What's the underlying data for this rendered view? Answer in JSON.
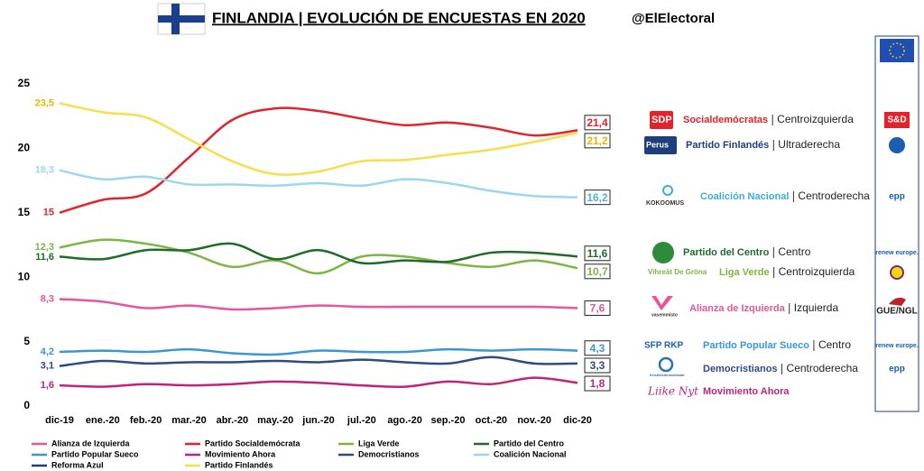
{
  "header": {
    "title": "FINLANDIA | EVOLUCIÓN DE ENCUESTAS EN 2020",
    "source": "@ElElectoral"
  },
  "chart_data": {
    "type": "line",
    "categories": [
      "dic-19",
      "ene.-20",
      "feb.-20",
      "mar.-20",
      "abr.-20",
      "may.-20",
      "jun.-20",
      "jul.-20",
      "ago.-20",
      "sep.-20",
      "oct.-20",
      "nov.-20",
      "dic-20"
    ],
    "ylim": [
      0,
      25
    ],
    "yticks": [
      0,
      5,
      10,
      15,
      20,
      25
    ],
    "grid": false,
    "series": [
      {
        "name": "Alianza de Izquierda",
        "color": "#e8559a",
        "values": [
          8.3,
          8.1,
          7.6,
          7.8,
          7.5,
          7.6,
          7.8,
          7.7,
          7.7,
          7.7,
          7.7,
          7.7,
          7.6
        ],
        "value_labels": [
          "8,3",
          null,
          null,
          null,
          null,
          null,
          null,
          null,
          null,
          null,
          null,
          null,
          "7,6"
        ]
      },
      {
        "name": "Partido Socialdemócrata",
        "color": "#e3232b",
        "values": [
          15,
          16.0,
          16.5,
          19.3,
          22.2,
          23.1,
          22.9,
          22.3,
          21.8,
          22.0,
          21.6,
          21.0,
          21.4
        ],
        "value_labels": [
          "15",
          null,
          null,
          null,
          null,
          null,
          null,
          null,
          null,
          null,
          null,
          null,
          "21,4"
        ]
      },
      {
        "name": "Liga Verde",
        "color": "#7db543",
        "values": [
          12.3,
          12.9,
          12.6,
          11.9,
          10.8,
          11.3,
          10.3,
          11.6,
          11.6,
          11.1,
          10.8,
          11.3,
          10.7
        ],
        "value_labels": [
          "12,3",
          null,
          null,
          null,
          null,
          null,
          null,
          null,
          null,
          null,
          null,
          null,
          "10,7"
        ]
      },
      {
        "name": "Partido del Centro",
        "color": "#1e6b2a",
        "values": [
          11.6,
          11.4,
          12.1,
          12.1,
          12.6,
          11.4,
          12.1,
          11.1,
          11.3,
          11.2,
          11.9,
          11.9,
          11.6
        ],
        "value_labels": [
          "11,6",
          null,
          null,
          null,
          null,
          null,
          null,
          null,
          null,
          null,
          null,
          null,
          "11,6"
        ]
      },
      {
        "name": "Partido Popular Sueco",
        "color": "#3a96d6",
        "values": [
          4.2,
          4.3,
          4.2,
          4.4,
          4.1,
          4.0,
          4.3,
          4.2,
          4.2,
          4.4,
          4.3,
          4.4,
          4.3
        ],
        "value_labels": [
          "4,2",
          null,
          null,
          null,
          null,
          null,
          null,
          null,
          null,
          null,
          null,
          null,
          "4,3"
        ]
      },
      {
        "name": "Movimiento Ahora",
        "color": "#c2237a",
        "values": [
          1.6,
          1.5,
          1.7,
          1.6,
          1.7,
          1.9,
          1.8,
          1.6,
          1.5,
          1.9,
          1.7,
          2.2,
          1.8
        ],
        "value_labels": [
          "1,6",
          null,
          null,
          null,
          null,
          null,
          null,
          null,
          null,
          null,
          null,
          null,
          "1,8"
        ]
      },
      {
        "name": "Democristianos",
        "color": "#2e4b82",
        "values": [
          3.1,
          3.5,
          3.3,
          3.4,
          3.4,
          3.5,
          3.4,
          3.6,
          3.4,
          3.3,
          3.8,
          3.3,
          3.3
        ],
        "value_labels": [
          "3,1",
          null,
          null,
          null,
          null,
          null,
          null,
          null,
          null,
          null,
          null,
          null,
          "3,3"
        ]
      },
      {
        "name": "Coalición Nacional",
        "color": "#9dd6ee",
        "values": [
          18.3,
          17.6,
          17.8,
          17.2,
          17.2,
          17.1,
          17.3,
          17.1,
          17.6,
          17.3,
          16.7,
          16.3,
          16.2
        ],
        "value_labels": [
          "18,3",
          null,
          null,
          null,
          null,
          null,
          null,
          null,
          null,
          null,
          null,
          null,
          "16,2"
        ]
      },
      {
        "name": "Reforma Azul",
        "color": "#1d3f7a",
        "values": [
          null,
          null,
          null,
          null,
          null,
          null,
          null,
          null,
          null,
          null,
          null,
          null,
          null
        ]
      },
      {
        "name": "Partido Finlandés",
        "color": "#f7de4a",
        "values": [
          23.5,
          22.8,
          22.4,
          20.7,
          19.0,
          18.0,
          18.2,
          19.0,
          19.1,
          19.5,
          19.9,
          20.5,
          21.2
        ],
        "value_labels": [
          "23,5",
          null,
          null,
          null,
          null,
          null,
          null,
          null,
          null,
          null,
          null,
          null,
          "21,2"
        ]
      }
    ]
  },
  "parties": [
    {
      "logo": "SDP",
      "name": "Socialdemócratas",
      "ideology": "Centroizquierda",
      "group": "S&D"
    },
    {
      "logo": "Perus",
      "name": "Partido Finlandés",
      "ideology": "Ultraderecha"
    },
    {
      "logo": "KOKOOMUS",
      "name": "Coalición Nacional",
      "ideology": "Centroderecha",
      "group": "epp"
    },
    {
      "name": "Partido del Centro",
      "ideology": "Centro",
      "group": "renew europe."
    },
    {
      "logo": "Vihreät De Gröna",
      "name": "Liga Verde",
      "ideology": "Centroizquierda"
    },
    {
      "logo": "vasemmisto",
      "name": "Alianza de Izquierda",
      "ideology": "Izquierda",
      "group": "GUE/NGL"
    },
    {
      "logo": "SFP RKP",
      "name": "Partido Popular Sueco",
      "ideology": "Centro",
      "group": "renew europe."
    },
    {
      "logo": "Kristillisdemokraatit",
      "name": "Democristianos",
      "ideology": "Centroderecha",
      "group": "epp"
    },
    {
      "logo": "Liike Nyt",
      "name": "Movimiento Ahora"
    }
  ]
}
